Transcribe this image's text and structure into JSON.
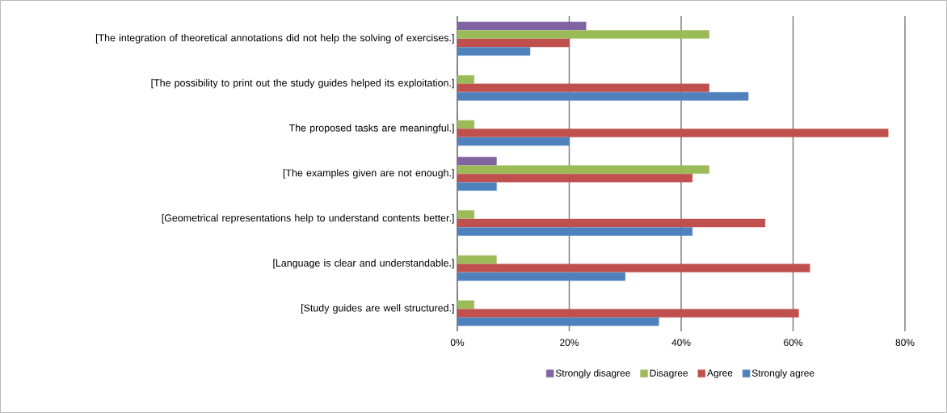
{
  "chart_data": {
    "type": "bar",
    "orientation": "horizontal",
    "categories": [
      "[The integration of theoretical annotations did not help the solving of exercises.]",
      "[The possibility to print out the study guides helped its exploitation.]",
      "The proposed tasks are meaningful.]",
      "[The examples given are not enough.]",
      "[Geometrical representations help to understand contents better.]",
      "[Language is clear and understandable.]",
      "[Study guides are well structured.]"
    ],
    "series": [
      {
        "name": "Strongly disagree",
        "color": "#8064a2",
        "values": [
          23,
          0,
          0,
          7,
          0,
          0,
          0
        ]
      },
      {
        "name": "Disagree",
        "color": "#9bbb59",
        "values": [
          45,
          3,
          3,
          45,
          3,
          7,
          3
        ]
      },
      {
        "name": "Agree",
        "color": "#c0504d",
        "values": [
          20,
          45,
          77,
          42,
          55,
          63,
          61
        ]
      },
      {
        "name": "Strongly agree",
        "color": "#4f81bd",
        "values": [
          13,
          52,
          20,
          7,
          42,
          30,
          36
        ]
      }
    ],
    "xlim": [
      0,
      80
    ],
    "xticks": [
      {
        "value": 0,
        "label": "0%"
      },
      {
        "value": 20,
        "label": "20%"
      },
      {
        "value": 40,
        "label": "40%"
      },
      {
        "value": 60,
        "label": "60%"
      },
      {
        "value": 80,
        "label": "80%"
      }
    ],
    "grid": "x",
    "legend": "bottom"
  }
}
